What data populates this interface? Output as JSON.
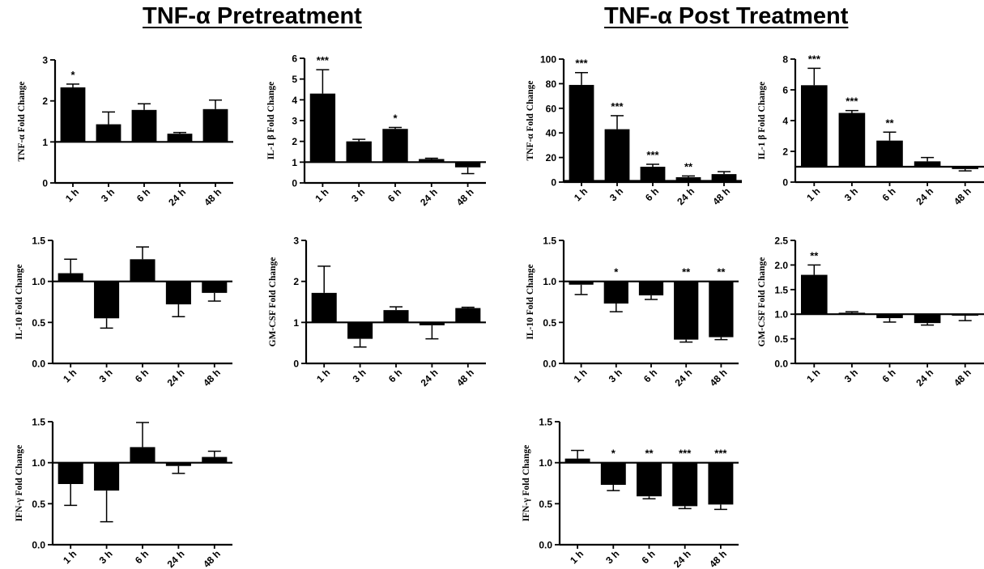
{
  "titles": {
    "left": "TNF-α Pretreatment",
    "right": "TNF-α Post Treatment"
  },
  "chart_data": [
    {
      "id": "pre-tnfa",
      "type": "bar",
      "ylabel": "TNF-α Fold Change",
      "categories": [
        "1 h",
        "3 h",
        "6 h",
        "24 h",
        "48 h"
      ],
      "ylim": [
        0,
        3
      ],
      "yticks": [
        0,
        1,
        2,
        3
      ],
      "baseline": 1,
      "values": [
        2.33,
        1.43,
        1.78,
        1.2,
        1.8
      ],
      "errors": [
        0.08,
        0.3,
        0.15,
        0.03,
        0.22
      ],
      "significance": [
        "*",
        "",
        "",
        "",
        ""
      ]
    },
    {
      "id": "pre-il1b",
      "type": "bar",
      "ylabel": "IL-1 β Fold Change",
      "categories": [
        "1 h",
        "3 h",
        "6 h",
        "24 h",
        "48 h"
      ],
      "ylim": [
        0,
        6
      ],
      "yticks": [
        0,
        1,
        2,
        3,
        4,
        5,
        6
      ],
      "baseline": 1,
      "values": [
        4.3,
        2.0,
        2.6,
        1.15,
        0.75
      ],
      "errors": [
        1.15,
        0.1,
        0.07,
        0.04,
        0.3
      ],
      "significance": [
        "***",
        "",
        "*",
        "",
        ""
      ]
    },
    {
      "id": "post-tnfa",
      "type": "bar",
      "ylabel": "TNF-α Fold Change",
      "categories": [
        "1 h",
        "3 h",
        "6 h",
        "24 h",
        "48 h"
      ],
      "ylim": [
        0,
        100
      ],
      "yticks": [
        0,
        20,
        40,
        60,
        80,
        100
      ],
      "baseline": 1,
      "values": [
        79,
        43,
        12.5,
        4,
        6.5
      ],
      "errors": [
        10,
        11,
        2,
        1,
        2
      ],
      "significance": [
        "***",
        "***",
        "***",
        "**",
        ""
      ]
    },
    {
      "id": "post-il1b",
      "type": "bar",
      "ylabel": "IL-1 β Fold Change",
      "categories": [
        "1 h",
        "3 h",
        "6 h",
        "24 h",
        "48 h"
      ],
      "ylim": [
        0,
        8
      ],
      "yticks": [
        0,
        2,
        4,
        6,
        8
      ],
      "baseline": 1,
      "values": [
        6.3,
        4.5,
        2.7,
        1.35,
        0.85
      ],
      "errors": [
        1.1,
        0.15,
        0.55,
        0.25,
        0.12
      ],
      "significance": [
        "***",
        "***",
        "**",
        "",
        ""
      ]
    },
    {
      "id": "pre-il10",
      "type": "bar",
      "ylabel": "IL-10 Fold Change",
      "categories": [
        "1 h",
        "3 h",
        "6 h",
        "24 h",
        "48 h"
      ],
      "ylim": [
        0,
        1.5
      ],
      "yticks": [
        0.0,
        0.5,
        1.0,
        1.5
      ],
      "tick_decimals": 1,
      "baseline": 1,
      "values": [
        1.1,
        0.55,
        1.27,
        0.72,
        0.86
      ],
      "errors": [
        0.17,
        0.12,
        0.15,
        0.15,
        0.1
      ],
      "significance": [
        "",
        "",
        "",
        "",
        ""
      ]
    },
    {
      "id": "pre-gmcsf",
      "type": "bar",
      "ylabel": "GM-CSF Fold Change",
      "categories": [
        "1 h",
        "3 h",
        "6 h",
        "24 h",
        "48 h"
      ],
      "ylim": [
        0,
        3
      ],
      "yticks": [
        0,
        1,
        2,
        3
      ],
      "baseline": 1,
      "values": [
        1.72,
        0.6,
        1.3,
        0.93,
        1.35
      ],
      "errors": [
        0.65,
        0.2,
        0.08,
        0.33,
        0.02
      ],
      "significance": [
        "",
        "",
        "",
        "",
        ""
      ]
    },
    {
      "id": "post-il10",
      "type": "bar",
      "ylabel": "IL-10 Fold Change",
      "categories": [
        "1 h",
        "3 h",
        "6 h",
        "24 h",
        "48 h"
      ],
      "ylim": [
        0,
        1.5
      ],
      "yticks": [
        0.0,
        0.5,
        1.0,
        1.5
      ],
      "tick_decimals": 1,
      "baseline": 1,
      "values": [
        0.96,
        0.73,
        0.83,
        0.29,
        0.32
      ],
      "errors": [
        0.12,
        0.1,
        0.05,
        0.03,
        0.03
      ],
      "significance": [
        "",
        "*",
        "",
        "**",
        "**"
      ]
    },
    {
      "id": "post-gmcsf",
      "type": "bar",
      "ylabel": "GM-CSF Fold Change",
      "categories": [
        "1 h",
        "3 h",
        "6 h",
        "24 h",
        "48 h"
      ],
      "ylim": [
        0,
        2.5
      ],
      "yticks": [
        0.0,
        0.5,
        1.0,
        1.5,
        2.0,
        2.5
      ],
      "tick_decimals": 1,
      "baseline": 1,
      "values": [
        1.8,
        1.03,
        0.92,
        0.82,
        0.97
      ],
      "errors": [
        0.2,
        0.02,
        0.08,
        0.04,
        0.1
      ],
      "significance": [
        "**",
        "",
        "",
        "",
        ""
      ]
    },
    {
      "id": "pre-ifng",
      "type": "bar",
      "ylabel": "IFN-γ Fold Change",
      "categories": [
        "1 h",
        "3 h",
        "6 h",
        "24 h",
        "48 h"
      ],
      "ylim": [
        0,
        1.5
      ],
      "yticks": [
        0.0,
        0.5,
        1.0,
        1.5
      ],
      "tick_decimals": 1,
      "baseline": 1,
      "values": [
        0.74,
        0.66,
        1.19,
        0.96,
        1.07
      ],
      "errors": [
        0.26,
        0.38,
        0.3,
        0.09,
        0.07
      ],
      "significance": [
        "",
        "",
        "",
        "",
        ""
      ]
    },
    {
      "id": "post-ifng",
      "type": "bar",
      "ylabel": "IFN-γ Fold Change",
      "categories": [
        "1 h",
        "3 h",
        "6 h",
        "24 h",
        "48 h"
      ],
      "ylim": [
        0,
        1.5
      ],
      "yticks": [
        0.0,
        0.5,
        1.0,
        1.5
      ],
      "tick_decimals": 1,
      "baseline": 1,
      "values": [
        1.05,
        0.73,
        0.59,
        0.47,
        0.49
      ],
      "errors": [
        0.1,
        0.07,
        0.03,
        0.03,
        0.06
      ],
      "significance": [
        "",
        "*",
        "**",
        "***",
        "***"
      ]
    }
  ]
}
